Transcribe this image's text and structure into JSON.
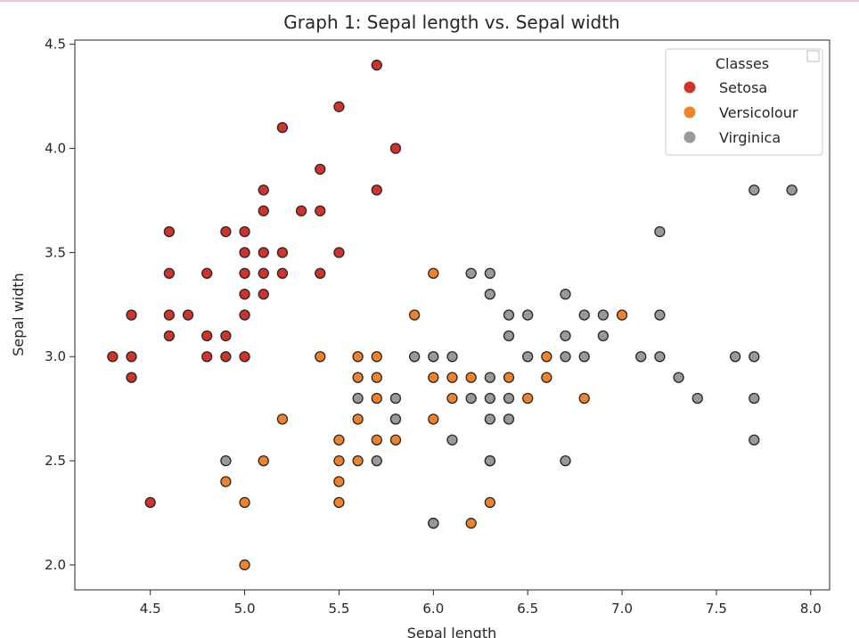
{
  "chart_data": {
    "type": "scatter",
    "title": "Graph 1: Sepal length vs. Sepal width",
    "xlabel": "Sepal length",
    "ylabel": "Sepal width",
    "xlim": [
      4.1,
      8.1
    ],
    "ylim": [
      1.88,
      4.52
    ],
    "xticks": [
      4.5,
      5.0,
      5.5,
      6.0,
      6.5,
      7.0,
      7.5,
      8.0
    ],
    "xtick_labels": [
      "4.5",
      "5.0",
      "5.5",
      "6.0",
      "6.5",
      "7.0",
      "7.5",
      "8.0"
    ],
    "yticks": [
      2.0,
      2.5,
      3.0,
      3.5,
      4.0,
      4.5
    ],
    "ytick_labels": [
      "2.0",
      "2.5",
      "3.0",
      "3.5",
      "4.0",
      "4.5"
    ],
    "grid": false,
    "legend": {
      "title": "Classes",
      "placement": "top-right"
    },
    "series": [
      {
        "name": "Setosa",
        "color": "#d1322c",
        "points": [
          [
            5.7,
            4.4
          ],
          [
            5.5,
            4.2
          ],
          [
            5.2,
            4.1
          ],
          [
            5.8,
            4.0
          ],
          [
            5.4,
            3.9
          ],
          [
            5.1,
            3.8
          ],
          [
            5.7,
            3.8
          ],
          [
            5.1,
            3.7
          ],
          [
            5.3,
            3.7
          ],
          [
            5.4,
            3.7
          ],
          [
            4.6,
            3.6
          ],
          [
            4.9,
            3.6
          ],
          [
            5.0,
            3.6
          ],
          [
            5.1,
            3.5
          ],
          [
            5.2,
            3.5
          ],
          [
            5.5,
            3.5
          ],
          [
            5.0,
            3.5
          ],
          [
            4.6,
            3.4
          ],
          [
            4.8,
            3.4
          ],
          [
            5.0,
            3.4
          ],
          [
            5.1,
            3.4
          ],
          [
            5.2,
            3.4
          ],
          [
            5.4,
            3.4
          ],
          [
            5.0,
            3.3
          ],
          [
            5.1,
            3.3
          ],
          [
            4.4,
            3.2
          ],
          [
            4.6,
            3.2
          ],
          [
            4.7,
            3.2
          ],
          [
            5.0,
            3.2
          ],
          [
            4.6,
            3.1
          ],
          [
            4.8,
            3.1
          ],
          [
            4.9,
            3.1
          ],
          [
            4.3,
            3.0
          ],
          [
            4.4,
            3.0
          ],
          [
            4.8,
            3.0
          ],
          [
            4.9,
            3.0
          ],
          [
            5.0,
            3.0
          ],
          [
            4.4,
            2.9
          ],
          [
            4.5,
            2.3
          ]
        ]
      },
      {
        "name": "Versicolour",
        "color": "#f0832a",
        "points": [
          [
            6.0,
            3.4
          ],
          [
            5.9,
            3.2
          ],
          [
            7.0,
            3.2
          ],
          [
            5.4,
            3.0
          ],
          [
            5.6,
            3.0
          ],
          [
            5.7,
            3.0
          ],
          [
            6.6,
            3.0
          ],
          [
            5.6,
            2.9
          ],
          [
            5.7,
            2.9
          ],
          [
            6.0,
            2.9
          ],
          [
            6.1,
            2.9
          ],
          [
            6.2,
            2.9
          ],
          [
            6.4,
            2.9
          ],
          [
            6.6,
            2.9
          ],
          [
            5.7,
            2.8
          ],
          [
            6.1,
            2.8
          ],
          [
            6.5,
            2.8
          ],
          [
            6.8,
            2.8
          ],
          [
            5.2,
            2.7
          ],
          [
            5.6,
            2.7
          ],
          [
            5.8,
            2.7
          ],
          [
            6.0,
            2.7
          ],
          [
            5.5,
            2.6
          ],
          [
            5.7,
            2.6
          ],
          [
            5.8,
            2.6
          ],
          [
            5.1,
            2.5
          ],
          [
            5.5,
            2.5
          ],
          [
            5.6,
            2.5
          ],
          [
            6.3,
            2.5
          ],
          [
            4.9,
            2.4
          ],
          [
            5.5,
            2.4
          ],
          [
            5.0,
            2.3
          ],
          [
            5.5,
            2.3
          ],
          [
            6.3,
            2.3
          ],
          [
            6.0,
            2.2
          ],
          [
            6.2,
            2.2
          ],
          [
            5.0,
            2.0
          ]
        ]
      },
      {
        "name": "Virginica",
        "color": "#999999",
        "points": [
          [
            7.7,
            3.8
          ],
          [
            7.9,
            3.8
          ],
          [
            7.2,
            3.6
          ],
          [
            6.2,
            3.4
          ],
          [
            6.3,
            3.4
          ],
          [
            6.3,
            3.3
          ],
          [
            6.7,
            3.3
          ],
          [
            6.4,
            3.2
          ],
          [
            6.5,
            3.2
          ],
          [
            6.8,
            3.2
          ],
          [
            6.9,
            3.2
          ],
          [
            7.2,
            3.2
          ],
          [
            6.4,
            3.1
          ],
          [
            6.7,
            3.1
          ],
          [
            6.9,
            3.1
          ],
          [
            5.9,
            3.0
          ],
          [
            6.0,
            3.0
          ],
          [
            6.1,
            3.0
          ],
          [
            6.5,
            3.0
          ],
          [
            6.7,
            3.0
          ],
          [
            6.8,
            3.0
          ],
          [
            7.1,
            3.0
          ],
          [
            7.2,
            3.0
          ],
          [
            7.6,
            3.0
          ],
          [
            7.7,
            3.0
          ],
          [
            6.3,
            2.9
          ],
          [
            7.3,
            2.9
          ],
          [
            5.6,
            2.8
          ],
          [
            5.8,
            2.8
          ],
          [
            6.2,
            2.8
          ],
          [
            6.3,
            2.8
          ],
          [
            6.4,
            2.8
          ],
          [
            7.4,
            2.8
          ],
          [
            7.7,
            2.8
          ],
          [
            5.8,
            2.7
          ],
          [
            6.3,
            2.7
          ],
          [
            6.4,
            2.7
          ],
          [
            6.1,
            2.6
          ],
          [
            7.7,
            2.6
          ],
          [
            4.9,
            2.5
          ],
          [
            5.7,
            2.5
          ],
          [
            6.3,
            2.5
          ],
          [
            6.7,
            2.5
          ],
          [
            6.0,
            2.2
          ]
        ]
      }
    ]
  }
}
